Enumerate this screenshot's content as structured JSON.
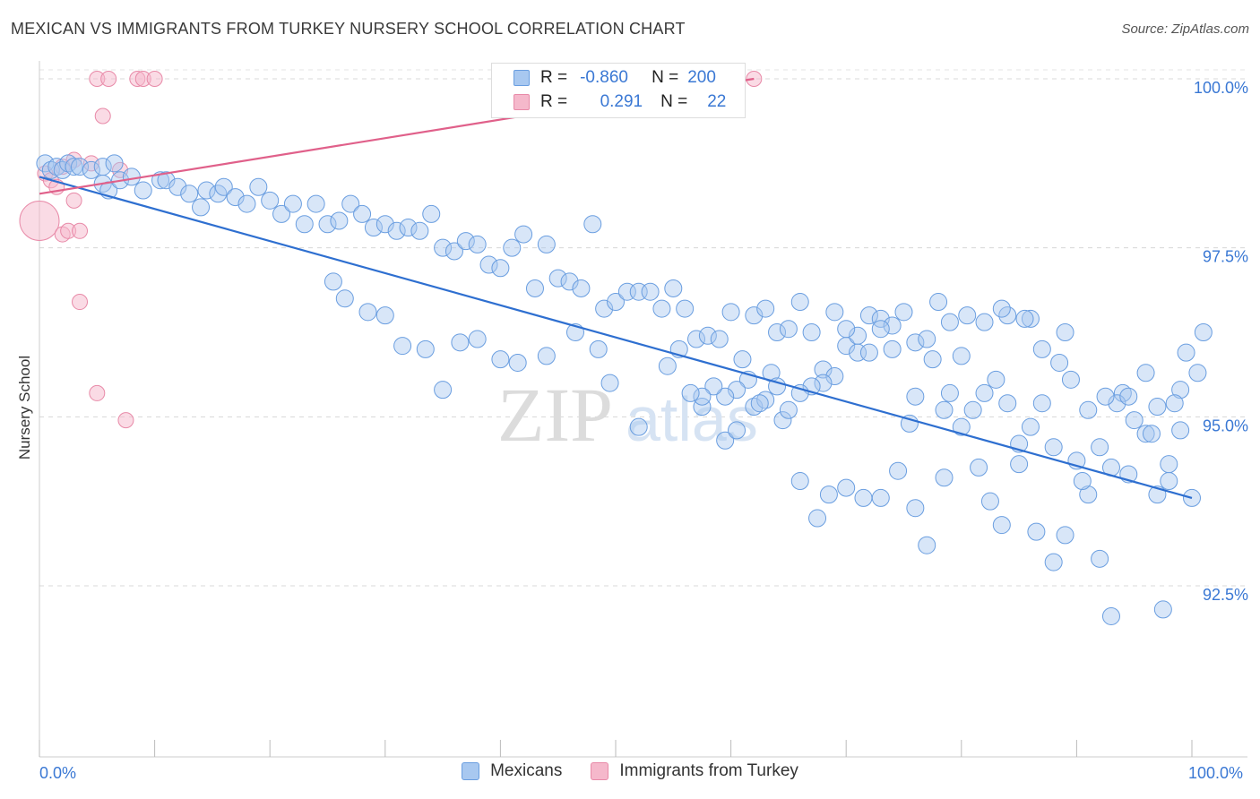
{
  "title": "MEXICAN VS IMMIGRANTS FROM TURKEY NURSERY SCHOOL CORRELATION CHART",
  "source": "Source: ZipAtlas.com",
  "watermark": {
    "zip": "ZIP",
    "atlas": "atlas"
  },
  "legend_top": {
    "rows": [
      {
        "r_label": "R =",
        "r_value": "-0.860",
        "n_label": "N =",
        "n_value": "200",
        "color": "#a8c8f0",
        "border": "#6a9ee0"
      },
      {
        "r_label": "R =",
        "r_value": "0.291",
        "n_label": "N =",
        "n_value": "22",
        "color": "#f5b8cb",
        "border": "#e88aa8"
      }
    ]
  },
  "legend_bottom": [
    {
      "label": "Mexicans",
      "color": "#a8c8f0",
      "border": "#6a9ee0"
    },
    {
      "label": "Immigrants from Turkey",
      "color": "#f5b8cb",
      "border": "#e88aa8"
    }
  ],
  "chart_data": {
    "type": "scatter",
    "title": "MEXICAN VS IMMIGRANTS FROM TURKEY NURSERY SCHOOL CORRELATION CHART",
    "xlabel": "",
    "ylabel": "Nursery School",
    "xlim": [
      0,
      100
    ],
    "ylim": [
      90.0,
      100.3
    ],
    "x_tick_labels": [
      "0.0%",
      "100.0%"
    ],
    "y_ticks": [
      92.5,
      95.0,
      97.5,
      100.0
    ],
    "y_tick_labels": [
      "92.5%",
      "95.0%",
      "97.5%",
      "100.0%"
    ],
    "grid": "horizontal dashed",
    "legend_position": "top-center",
    "colors": {
      "mexicans": "#6a9ee0",
      "mexicans_fill": "#a8c8f0",
      "mexicans_line": "#2e6fd0",
      "turkey": "#e88aa8",
      "turkey_fill": "#f5b8cb",
      "turkey_line": "#e0608a"
    },
    "series": [
      {
        "name": "Mexicans",
        "trend": {
          "x": [
            0,
            100
          ],
          "y": [
            98.55,
            93.8
          ]
        },
        "points": [
          [
            0.5,
            98.75
          ],
          [
            1.0,
            98.65
          ],
          [
            1.5,
            98.7
          ],
          [
            2.0,
            98.65
          ],
          [
            2.5,
            98.75
          ],
          [
            3.0,
            98.7
          ],
          [
            3.5,
            98.7
          ],
          [
            4.5,
            98.65
          ],
          [
            5.5,
            98.7
          ],
          [
            6.5,
            98.75
          ],
          [
            5.5,
            98.45
          ],
          [
            6.0,
            98.35
          ],
          [
            7.0,
            98.5
          ],
          [
            8.0,
            98.55
          ],
          [
            9.0,
            98.35
          ],
          [
            10.5,
            98.5
          ],
          [
            11.0,
            98.5
          ],
          [
            12.0,
            98.4
          ],
          [
            13.0,
            98.3
          ],
          [
            14.0,
            98.1
          ],
          [
            14.5,
            98.35
          ],
          [
            15.5,
            98.3
          ],
          [
            16.0,
            98.4
          ],
          [
            17.0,
            98.25
          ],
          [
            18.0,
            98.15
          ],
          [
            19.0,
            98.4
          ],
          [
            20.0,
            98.2
          ],
          [
            21.0,
            98.0
          ],
          [
            22.0,
            98.15
          ],
          [
            23.0,
            97.85
          ],
          [
            24.0,
            98.15
          ],
          [
            25.0,
            97.85
          ],
          [
            26.0,
            97.9
          ],
          [
            27.0,
            98.15
          ],
          [
            28.0,
            98.0
          ],
          [
            29.0,
            97.8
          ],
          [
            30.0,
            97.85
          ],
          [
            31.0,
            97.75
          ],
          [
            32.0,
            97.8
          ],
          [
            33.0,
            97.75
          ],
          [
            34.0,
            98.0
          ],
          [
            35.0,
            97.5
          ],
          [
            36.0,
            97.45
          ],
          [
            37.0,
            97.6
          ],
          [
            38.0,
            97.55
          ],
          [
            39.0,
            97.25
          ],
          [
            40.0,
            97.2
          ],
          [
            41.0,
            97.5
          ],
          [
            42.0,
            97.7
          ],
          [
            43.0,
            96.9
          ],
          [
            44.0,
            97.55
          ],
          [
            45.0,
            97.05
          ],
          [
            46.0,
            97.0
          ],
          [
            47.0,
            96.9
          ],
          [
            48.0,
            97.85
          ],
          [
            49.0,
            96.6
          ],
          [
            50.0,
            96.7
          ],
          [
            51.0,
            96.85
          ],
          [
            52.0,
            96.85
          ],
          [
            53.0,
            96.85
          ],
          [
            54.0,
            96.6
          ],
          [
            55.0,
            96.9
          ],
          [
            56.0,
            96.6
          ],
          [
            57.0,
            96.15
          ],
          [
            58.0,
            96.2
          ],
          [
            59.0,
            96.15
          ],
          [
            60.0,
            96.55
          ],
          [
            61.0,
            95.85
          ],
          [
            62.0,
            96.5
          ],
          [
            63.0,
            96.6
          ],
          [
            64.0,
            96.25
          ],
          [
            65.0,
            96.3
          ],
          [
            66.0,
            96.7
          ],
          [
            67.0,
            96.25
          ],
          [
            68.0,
            95.7
          ],
          [
            69.0,
            96.55
          ],
          [
            70.0,
            96.05
          ],
          [
            71.0,
            95.95
          ],
          [
            72.0,
            96.5
          ],
          [
            73.0,
            96.45
          ],
          [
            74.0,
            96.0
          ],
          [
            75.0,
            96.55
          ],
          [
            76.0,
            96.1
          ],
          [
            77.0,
            96.15
          ],
          [
            78.0,
            96.7
          ],
          [
            79.0,
            96.4
          ],
          [
            80.0,
            95.9
          ],
          [
            81.0,
            95.1
          ],
          [
            82.0,
            95.35
          ],
          [
            83.0,
            95.55
          ],
          [
            84.0,
            95.2
          ],
          [
            85.0,
            94.6
          ],
          [
            86.0,
            94.85
          ],
          [
            87.0,
            95.2
          ],
          [
            88.0,
            94.55
          ],
          [
            89.0,
            96.25
          ],
          [
            90.0,
            94.35
          ],
          [
            91.0,
            93.85
          ],
          [
            92.0,
            94.55
          ],
          [
            93.0,
            94.25
          ],
          [
            94.0,
            95.35
          ],
          [
            95.0,
            94.95
          ],
          [
            96.0,
            95.65
          ],
          [
            97.0,
            93.85
          ],
          [
            98.0,
            94.05
          ],
          [
            99.0,
            95.4
          ],
          [
            25.5,
            97.0
          ],
          [
            26.5,
            96.75
          ],
          [
            28.5,
            96.55
          ],
          [
            30.0,
            96.5
          ],
          [
            31.5,
            96.05
          ],
          [
            33.5,
            96.0
          ],
          [
            35.0,
            95.4
          ],
          [
            36.5,
            96.1
          ],
          [
            38.0,
            96.15
          ],
          [
            40.0,
            95.85
          ],
          [
            41.5,
            95.8
          ],
          [
            44.0,
            95.9
          ],
          [
            46.5,
            96.25
          ],
          [
            48.5,
            96.0
          ],
          [
            49.5,
            95.5
          ],
          [
            52.0,
            94.85
          ],
          [
            54.5,
            95.75
          ],
          [
            55.5,
            96.0
          ],
          [
            57.5,
            95.15
          ],
          [
            59.5,
            94.65
          ],
          [
            60.5,
            94.8
          ],
          [
            62.0,
            95.15
          ],
          [
            63.5,
            95.65
          ],
          [
            64.5,
            94.95
          ],
          [
            66.0,
            94.05
          ],
          [
            67.5,
            93.5
          ],
          [
            68.5,
            93.85
          ],
          [
            70.0,
            93.95
          ],
          [
            71.5,
            93.8
          ],
          [
            73.0,
            93.8
          ],
          [
            74.5,
            94.2
          ],
          [
            76.0,
            93.65
          ],
          [
            77.0,
            93.1
          ],
          [
            78.5,
            94.1
          ],
          [
            80.0,
            94.85
          ],
          [
            81.5,
            94.25
          ],
          [
            82.5,
            93.75
          ],
          [
            83.5,
            93.4
          ],
          [
            85.0,
            94.3
          ],
          [
            86.5,
            93.3
          ],
          [
            88.0,
            92.85
          ],
          [
            89.0,
            93.25
          ],
          [
            90.5,
            94.05
          ],
          [
            92.0,
            92.9
          ],
          [
            93.0,
            92.05
          ],
          [
            94.5,
            94.15
          ],
          [
            96.0,
            94.75
          ],
          [
            97.5,
            92.15
          ],
          [
            98.0,
            94.3
          ],
          [
            99.0,
            94.8
          ],
          [
            100.0,
            93.8
          ],
          [
            93.5,
            95.2
          ],
          [
            94.5,
            95.3
          ],
          [
            96.5,
            94.75
          ],
          [
            97.0,
            95.15
          ],
          [
            98.5,
            95.2
          ],
          [
            99.5,
            95.95
          ],
          [
            100.5,
            95.65
          ],
          [
            101.0,
            96.25
          ],
          [
            92.5,
            95.3
          ],
          [
            91.0,
            95.1
          ],
          [
            89.5,
            95.55
          ],
          [
            88.5,
            95.8
          ],
          [
            87.0,
            96.0
          ],
          [
            86.0,
            96.45
          ],
          [
            85.5,
            96.45
          ],
          [
            84.0,
            96.5
          ],
          [
            83.5,
            96.6
          ],
          [
            82.0,
            96.4
          ],
          [
            80.5,
            96.5
          ],
          [
            79.0,
            95.35
          ],
          [
            78.5,
            95.1
          ],
          [
            77.5,
            95.85
          ],
          [
            76.0,
            95.3
          ],
          [
            75.5,
            94.9
          ],
          [
            74.0,
            96.35
          ],
          [
            73.0,
            96.3
          ],
          [
            72.0,
            95.95
          ],
          [
            71.0,
            96.2
          ],
          [
            70.0,
            96.3
          ],
          [
            69.0,
            95.6
          ],
          [
            68.0,
            95.5
          ],
          [
            67.0,
            95.45
          ],
          [
            66.0,
            95.35
          ],
          [
            65.0,
            95.1
          ],
          [
            64.0,
            95.45
          ],
          [
            63.0,
            95.25
          ],
          [
            62.5,
            95.2
          ],
          [
            61.5,
            95.55
          ],
          [
            60.5,
            95.4
          ],
          [
            59.5,
            95.3
          ],
          [
            58.5,
            95.45
          ],
          [
            57.5,
            95.3
          ],
          [
            56.5,
            95.35
          ]
        ]
      },
      {
        "name": "Immigrants from Turkey",
        "trend": {
          "x": [
            0,
            62
          ],
          "y": [
            98.3,
            100.0
          ]
        },
        "points": [
          [
            0.0,
            97.9
          ],
          [
            0.5,
            98.6
          ],
          [
            1.0,
            98.5
          ],
          [
            1.5,
            98.4
          ],
          [
            2.0,
            97.7
          ],
          [
            2.5,
            97.75
          ],
          [
            3.0,
            98.8
          ],
          [
            3.0,
            98.2
          ],
          [
            3.5,
            97.75
          ],
          [
            3.5,
            96.7
          ],
          [
            4.5,
            98.75
          ],
          [
            5.0,
            95.35
          ],
          [
            5.5,
            99.45
          ],
          [
            5.0,
            100.0
          ],
          [
            6.0,
            100.0
          ],
          [
            7.0,
            98.65
          ],
          [
            7.5,
            94.95
          ],
          [
            8.5,
            100.0
          ],
          [
            9.0,
            100.0
          ],
          [
            10.0,
            100.0
          ],
          [
            62.0,
            100.0
          ],
          [
            2.0,
            98.7
          ]
        ]
      }
    ]
  }
}
